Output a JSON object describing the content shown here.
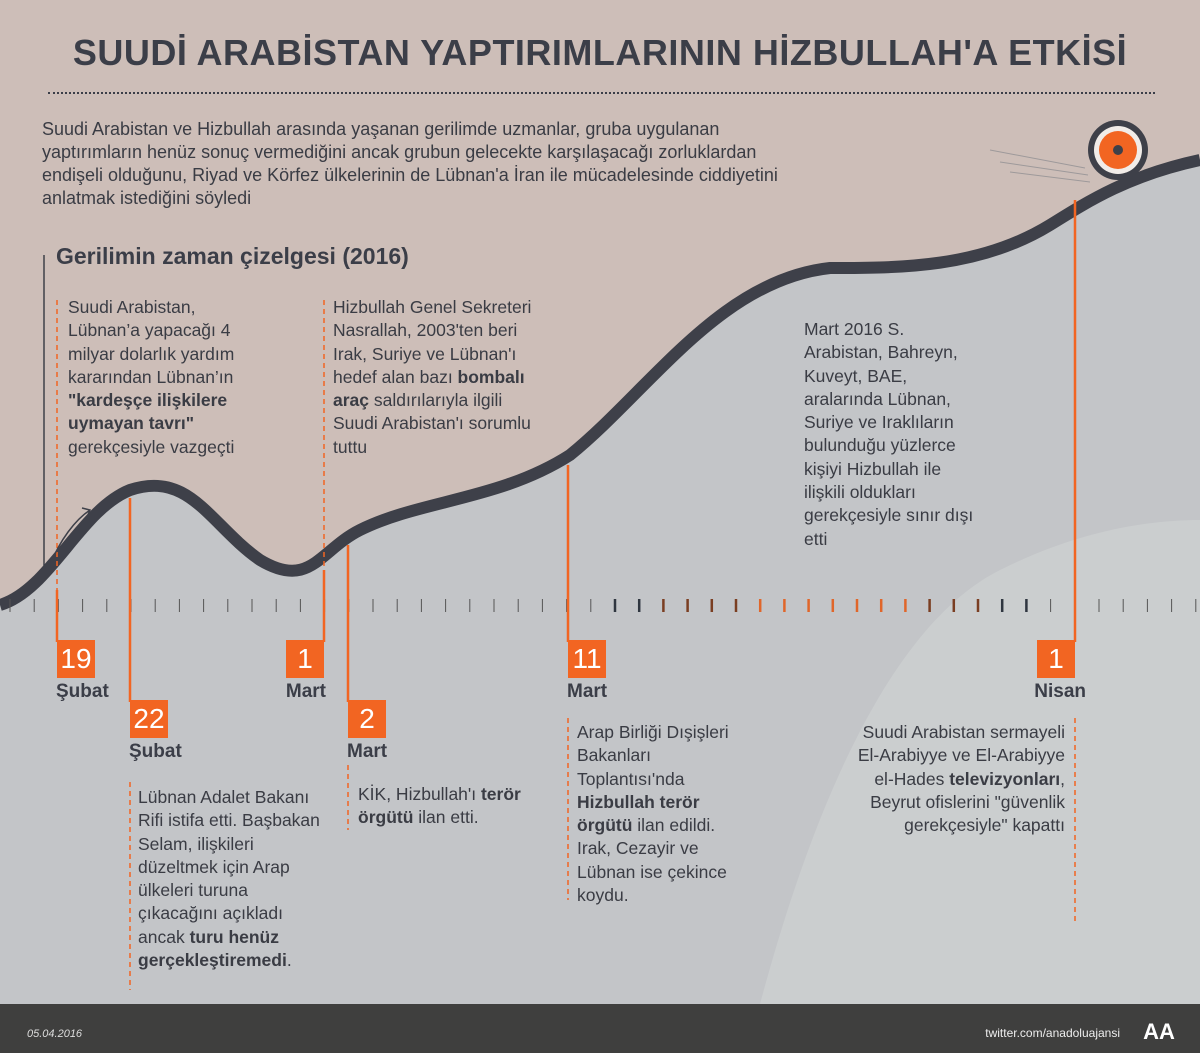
{
  "title": "SUUDİ ARABİSTAN YAPTIRIMLARININ HİZBULLAH'A ETKİSİ",
  "intro": "Suudi Arabistan ve Hizbullah arasında yaşanan gerilimde uzmanlar, gruba uygulanan yaptırımların henüz sonuç vermediğini ancak grubun gelecekte karşılaşacağı zorluklardan endişeli olduğunu, Riyad ve Körfez ülkelerinin de Lübnan'a İran ile mücadelesinde ciddiyetini anlatmak istediğini söyledi",
  "subtitle": "Gerilimin zaman çizelgesi (2016)",
  "colors": {
    "accent": "#f26522",
    "curve": "#3e4049",
    "background": "#c3c5c8",
    "top_region": "#cdbeb8"
  },
  "events": [
    {
      "day": "19",
      "month": "Şubat",
      "text_parts": [
        [
          "Suudi Arabistan, Lübnan’a yapacağı 4 milyar dolarlık yardım kararından Lübnan’ın ",
          false
        ],
        [
          "\"kardeşçe ilişkilere uymayan tavrı\"",
          true
        ],
        [
          " gerekçesiyle vazgeçti",
          false
        ]
      ]
    },
    {
      "day": "22",
      "month": "Şubat",
      "text_parts": [
        [
          "Lübnan Adalet Bakanı Rifi istifa etti. Başbakan Selam, ilişkileri düzeltmek için Arap ülkeleri turuna çıkacağını açıkladı ancak ",
          false
        ],
        [
          "turu henüz gerçekleştiremedi",
          true
        ],
        [
          ".",
          false
        ]
      ]
    },
    {
      "day": "1",
      "month": "Mart",
      "text_parts": [
        [
          "Hizbullah Genel Sekreteri Nasrallah, 2003'ten beri Irak, Suriye ve Lübnan'ı hedef alan bazı ",
          false
        ],
        [
          "bombalı araç",
          true
        ],
        [
          " saldırılarıyla ilgili Suudi Arabistan'ı sorumlu tuttu",
          false
        ]
      ]
    },
    {
      "day": "2",
      "month": "Mart",
      "text_parts": [
        [
          "KİK, Hizbullah'ı ",
          false
        ],
        [
          "terör örgütü",
          true
        ],
        [
          " ilan etti.",
          false
        ]
      ]
    },
    {
      "day": "11",
      "month": "Mart",
      "text_parts": [
        [
          "Arap Birliği Dışişleri Bakanları Toplantısı'nda ",
          false
        ],
        [
          "Hizbullah terör örgütü",
          true
        ],
        [
          " ilan edildi. Irak, Cezayir ve Lübnan ise çekince koydu.",
          false
        ]
      ]
    },
    {
      "day": "1",
      "month": "Nisan",
      "text_parts": [
        [
          "Suudi Arabistan sermayeli El-Arabiyye ve El-Arabiyye el-Hades ",
          false
        ],
        [
          "televizyonları",
          true
        ],
        [
          ", Beyrut ofislerini \"güvenlik gerekçesiyle\" kapattı",
          false
        ]
      ]
    }
  ],
  "march_note": "Mart 2016 S. Arabistan, Bahreyn, Kuveyt, BAE, aralarında Lübnan, Suriye ve Iraklıların bulunduğu yüzlerce kişiyi Hizbullah ile ilişkili oldukları gerekçesiyle sınır dışı etti",
  "footer": {
    "date": "05.04.2016",
    "twitter": "twitter.com/anadoluajansi",
    "logo": "AA"
  }
}
